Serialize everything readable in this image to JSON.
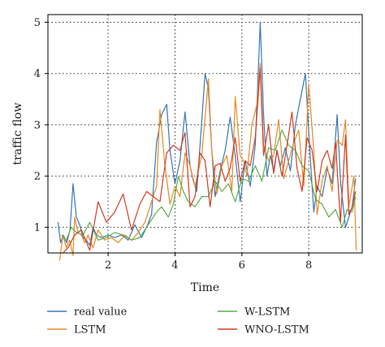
{
  "chart_data": {
    "type": "line",
    "xlabel": "Time",
    "ylabel": "traffic flow",
    "xlim": [
      0.2,
      9.6
    ],
    "ylim": [
      0.5,
      5.15
    ],
    "xticks": [
      2,
      4,
      6,
      8
    ],
    "yticks": [
      1,
      2,
      3,
      4,
      5
    ],
    "grid": true,
    "legend_position": "bottom",
    "series": [
      {
        "name": "real value",
        "color": "#3a78b5",
        "x": [
          0.5,
          0.58,
          0.66,
          0.76,
          0.86,
          0.95,
          1.05,
          1.15,
          1.25,
          1.35,
          1.45,
          1.55,
          1.65,
          1.8,
          2.0,
          2.2,
          2.4,
          2.6,
          2.8,
          3.0,
          3.15,
          3.3,
          3.45,
          3.6,
          3.75,
          3.85,
          4.0,
          4.15,
          4.3,
          4.45,
          4.55,
          4.65,
          4.75,
          4.9,
          5.0,
          5.1,
          5.2,
          5.35,
          5.5,
          5.65,
          5.8,
          5.95,
          6.1,
          6.25,
          6.4,
          6.55,
          6.65,
          6.75,
          6.85,
          6.95,
          7.05,
          7.15,
          7.3,
          7.45,
          7.6,
          7.75,
          7.9,
          8.05,
          8.15,
          8.25,
          8.4,
          8.55,
          8.7,
          8.85,
          8.95,
          9.1,
          9.2,
          9.3,
          9.4
        ],
        "y": [
          1.1,
          0.7,
          0.85,
          0.7,
          0.95,
          1.85,
          1.2,
          1.05,
          0.8,
          0.75,
          0.65,
          1.0,
          0.85,
          0.8,
          0.85,
          0.8,
          0.85,
          0.75,
          1.05,
          0.8,
          1.0,
          1.25,
          2.65,
          3.2,
          3.4,
          2.5,
          1.85,
          2.3,
          3.25,
          2.2,
          1.9,
          1.7,
          2.6,
          4.0,
          3.7,
          2.5,
          1.6,
          2.1,
          2.5,
          3.15,
          2.4,
          1.5,
          2.3,
          1.8,
          2.6,
          5.0,
          3.2,
          2.0,
          2.4,
          2.1,
          2.5,
          2.2,
          2.55,
          2.1,
          3.0,
          3.5,
          4.0,
          2.3,
          1.3,
          1.8,
          1.6,
          2.15,
          1.85,
          3.2,
          1.9,
          1.0,
          1.2,
          1.4,
          1.95
        ]
      },
      {
        "name": "LSTM",
        "color": "#e98a2a",
        "x": [
          0.55,
          0.65,
          0.75,
          0.85,
          0.95,
          1.0,
          1.1,
          1.2,
          1.3,
          1.4,
          1.55,
          1.7,
          1.9,
          2.1,
          2.3,
          2.5,
          2.7,
          2.9,
          3.1,
          3.3,
          3.45,
          3.55,
          3.7,
          3.85,
          4.0,
          4.15,
          4.3,
          4.45,
          4.6,
          4.8,
          5.0,
          5.1,
          5.25,
          5.4,
          5.55,
          5.7,
          5.8,
          5.95,
          6.05,
          6.15,
          6.3,
          6.45,
          6.55,
          6.65,
          6.8,
          6.95,
          7.1,
          7.25,
          7.4,
          7.55,
          7.7,
          7.85,
          8.0,
          8.15,
          8.25,
          8.4,
          8.55,
          8.7,
          8.85,
          9.0,
          9.1,
          9.2,
          9.35,
          9.42
        ],
        "y": [
          0.35,
          0.85,
          0.6,
          0.75,
          0.45,
          1.2,
          0.9,
          0.85,
          0.7,
          0.85,
          0.6,
          0.95,
          0.75,
          0.8,
          0.7,
          0.85,
          0.75,
          0.9,
          1.1,
          1.5,
          1.8,
          3.3,
          2.2,
          1.45,
          1.8,
          1.6,
          2.45,
          2.2,
          1.8,
          2.4,
          3.9,
          2.5,
          1.65,
          2.2,
          2.4,
          1.7,
          3.55,
          2.4,
          2.3,
          2.0,
          3.0,
          3.4,
          4.2,
          2.6,
          2.3,
          2.4,
          3.1,
          1.95,
          2.3,
          2.65,
          2.9,
          1.8,
          3.8,
          2.5,
          1.25,
          1.9,
          2.2,
          1.7,
          2.7,
          2.6,
          3.1,
          1.4,
          2.0,
          0.55
        ]
      },
      {
        "name": "W-LSTM",
        "color": "#5cae4a",
        "x": [
          0.6,
          0.75,
          0.9,
          1.05,
          1.25,
          1.45,
          1.7,
          1.95,
          2.2,
          2.45,
          2.7,
          2.95,
          3.2,
          3.45,
          3.6,
          3.8,
          3.95,
          4.1,
          4.25,
          4.4,
          4.6,
          4.8,
          5.0,
          5.2,
          5.4,
          5.6,
          5.8,
          6.0,
          6.2,
          6.4,
          6.6,
          6.8,
          7.0,
          7.2,
          7.4,
          7.6,
          7.8,
          8.0,
          8.2,
          8.4,
          8.6,
          8.8,
          9.0,
          9.15,
          9.3,
          9.4
        ],
        "y": [
          0.85,
          0.75,
          1.0,
          0.9,
          0.85,
          1.1,
          0.75,
          0.8,
          0.9,
          0.85,
          0.75,
          0.8,
          1.05,
          1.3,
          1.4,
          1.2,
          1.45,
          2.0,
          1.7,
          1.5,
          1.4,
          1.6,
          1.6,
          1.9,
          1.7,
          1.85,
          1.5,
          1.95,
          1.9,
          2.2,
          1.9,
          2.55,
          2.5,
          2.9,
          2.6,
          2.5,
          2.2,
          2.1,
          1.55,
          1.45,
          1.2,
          1.35,
          1.0,
          1.35,
          1.3,
          1.6
        ]
      },
      {
        "name": "WNO-LSTM",
        "color": "#d23f27",
        "x": [
          0.65,
          0.8,
          1.0,
          1.2,
          1.45,
          1.7,
          1.95,
          2.2,
          2.45,
          2.7,
          2.95,
          3.15,
          3.35,
          3.55,
          3.75,
          3.95,
          4.15,
          4.3,
          4.45,
          4.6,
          4.75,
          4.9,
          5.05,
          5.2,
          5.35,
          5.5,
          5.65,
          5.8,
          5.95,
          6.1,
          6.25,
          6.4,
          6.55,
          6.65,
          6.8,
          6.95,
          7.05,
          7.2,
          7.35,
          7.5,
          7.65,
          7.8,
          7.95,
          8.1,
          8.25,
          8.4,
          8.55,
          8.7,
          8.8,
          8.95,
          9.1,
          9.2,
          9.3,
          9.4
        ],
        "y": [
          0.5,
          0.6,
          0.85,
          0.95,
          0.55,
          1.5,
          1.1,
          1.3,
          1.65,
          0.95,
          1.45,
          1.7,
          1.6,
          1.5,
          2.45,
          2.6,
          2.5,
          2.85,
          1.4,
          1.6,
          2.45,
          2.3,
          1.4,
          2.2,
          2.25,
          1.9,
          2.15,
          2.75,
          1.9,
          2.3,
          2.2,
          2.75,
          4.1,
          2.4,
          3.0,
          2.05,
          2.5,
          2.0,
          2.6,
          3.25,
          2.15,
          1.7,
          2.75,
          2.5,
          1.7,
          2.3,
          2.5,
          2.15,
          2.65,
          1.1,
          2.8,
          1.25,
          1.4,
          1.7
        ]
      }
    ]
  }
}
